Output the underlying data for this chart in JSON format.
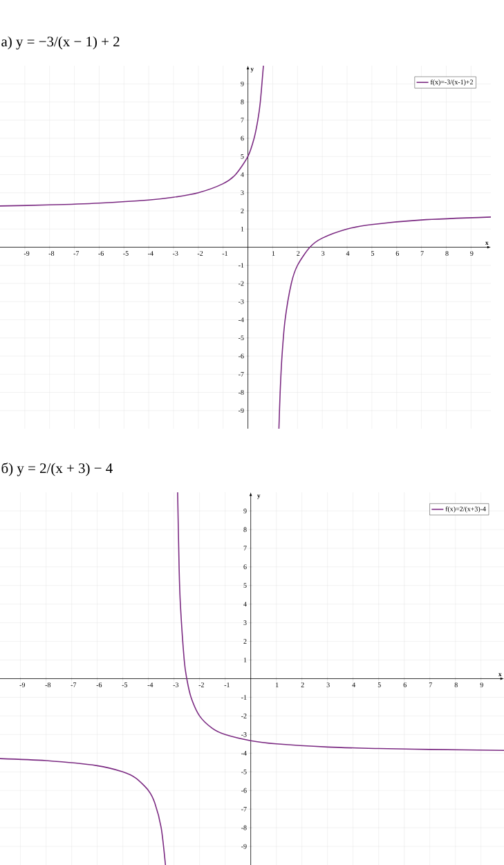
{
  "chart_data": [
    {
      "type": "line",
      "title": "а) y = −3/(x − 1) + 2",
      "xlabel": "x",
      "ylabel": "y",
      "xlim": [
        -10,
        9.8
      ],
      "ylim": [
        -10,
        10
      ],
      "xticks": [
        -9,
        -8,
        -7,
        -6,
        -5,
        -4,
        -3,
        -2,
        -1,
        1,
        2,
        3,
        4,
        5,
        6,
        7,
        8,
        9
      ],
      "yticks": [
        -9,
        -8,
        -7,
        -6,
        -5,
        -4,
        -3,
        -2,
        -1,
        1,
        2,
        3,
        4,
        5,
        6,
        7,
        8,
        9
      ],
      "grid": true,
      "legend": "top right",
      "marker": "none",
      "line_style": "solid",
      "series": [
        {
          "name": "f(x)=-3/(x-1)+2",
          "color": "#7b2a82",
          "x": [
            -10,
            -8,
            -6,
            -4,
            -3,
            -2,
            -1,
            -0.5,
            0,
            0.25,
            0.4,
            0.5,
            0.625
          ],
          "values": [
            2.27,
            2.33,
            2.43,
            2.6,
            2.75,
            3,
            3.5,
            4,
            5,
            6,
            7,
            8,
            10
          ]
        },
        {
          "color": "#7b2a82",
          "x": [
            1.25,
            1.3,
            1.375,
            1.5,
            1.75,
            2,
            2.5,
            3,
            4,
            5,
            7,
            9.8
          ],
          "values": [
            -10,
            -8,
            -6,
            -4,
            -2,
            -1,
            0,
            0.5,
            1,
            1.25,
            1.5,
            1.66
          ]
        }
      ]
    },
    {
      "type": "line",
      "title": "б) y = 2/(x + 3) − 4",
      "xlabel": "x",
      "ylabel": "y",
      "xlim": [
        -9.8,
        9.9
      ],
      "ylim": [
        -10,
        10
      ],
      "xticks": [
        -9,
        -8,
        -7,
        -6,
        -5,
        -4,
        -3,
        -2,
        -1,
        1,
        2,
        3,
        4,
        5,
        6,
        7,
        8,
        9
      ],
      "yticks": [
        -9,
        -8,
        -7,
        -6,
        -5,
        -4,
        -3,
        -2,
        -1,
        1,
        2,
        3,
        4,
        5,
        6,
        7,
        8,
        9
      ],
      "grid": true,
      "legend": "top right",
      "marker": "none",
      "line_style": "solid",
      "series": [
        {
          "name": "f(x)=2/(x+3)-4",
          "color": "#7b2a82",
          "x": [
            -2.857,
            -2.8,
            -2.75,
            -2.6,
            -2.5,
            -2.333,
            -2,
            -1.5,
            -1,
            0,
            1,
            3,
            5,
            7,
            9.9
          ],
          "values": [
            10,
            6,
            4,
            1,
            0,
            -1,
            -2,
            -2.67,
            -3,
            -3.33,
            -3.5,
            -3.67,
            -3.75,
            -3.8,
            -3.85
          ]
        },
        {
          "color": "#7b2a82",
          "x": [
            -9.8,
            -8,
            -6,
            -5,
            -4.5,
            -4,
            -3.75,
            -3.5,
            -3.333
          ],
          "values": [
            -4.29,
            -4.4,
            -4.67,
            -5,
            -5.33,
            -6,
            -6.67,
            -8,
            -10
          ]
        }
      ]
    }
  ]
}
